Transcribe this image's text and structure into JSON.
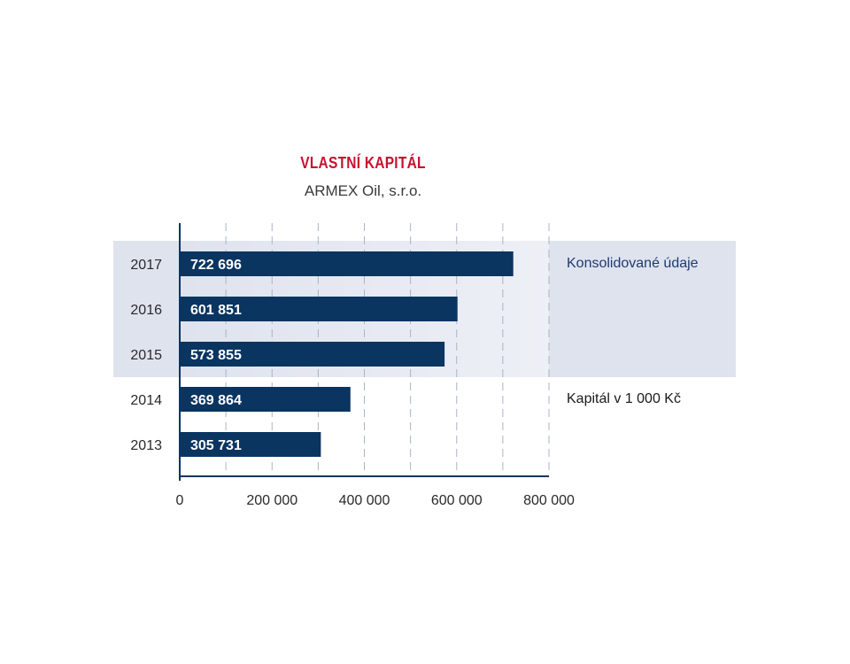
{
  "chart_data": {
    "type": "bar",
    "orientation": "horizontal",
    "title": "VLASTNÍ KAPITÁL",
    "subtitle": "ARMEX Oil, s.r.o.",
    "categories": [
      "2017",
      "2016",
      "2015",
      "2014",
      "2013"
    ],
    "values": [
      722696,
      601851,
      573855,
      369864,
      305731
    ],
    "value_labels": [
      "722 696",
      "601 851",
      "573 855",
      "369 864",
      "305 731"
    ],
    "xlim": [
      0,
      800000
    ],
    "x_ticks": [
      0,
      200000,
      400000,
      600000,
      800000
    ],
    "x_tick_labels": [
      "0",
      "200 000",
      "400 000",
      "600 000",
      "800 000"
    ],
    "grid": "vertical dashed",
    "highlighted_categories": [
      "2017",
      "2016",
      "2015"
    ],
    "annotations": {
      "consolidated": "Konsolidované údaje",
      "units": "Kapitál v 1 000 Kč"
    }
  },
  "colors": {
    "bar": "#0b3561",
    "bar_label": "#ffffff",
    "title": "#c8102e",
    "band": "#dfe3ee",
    "axis": "#0b3561",
    "grid": "#a9b4c8"
  }
}
